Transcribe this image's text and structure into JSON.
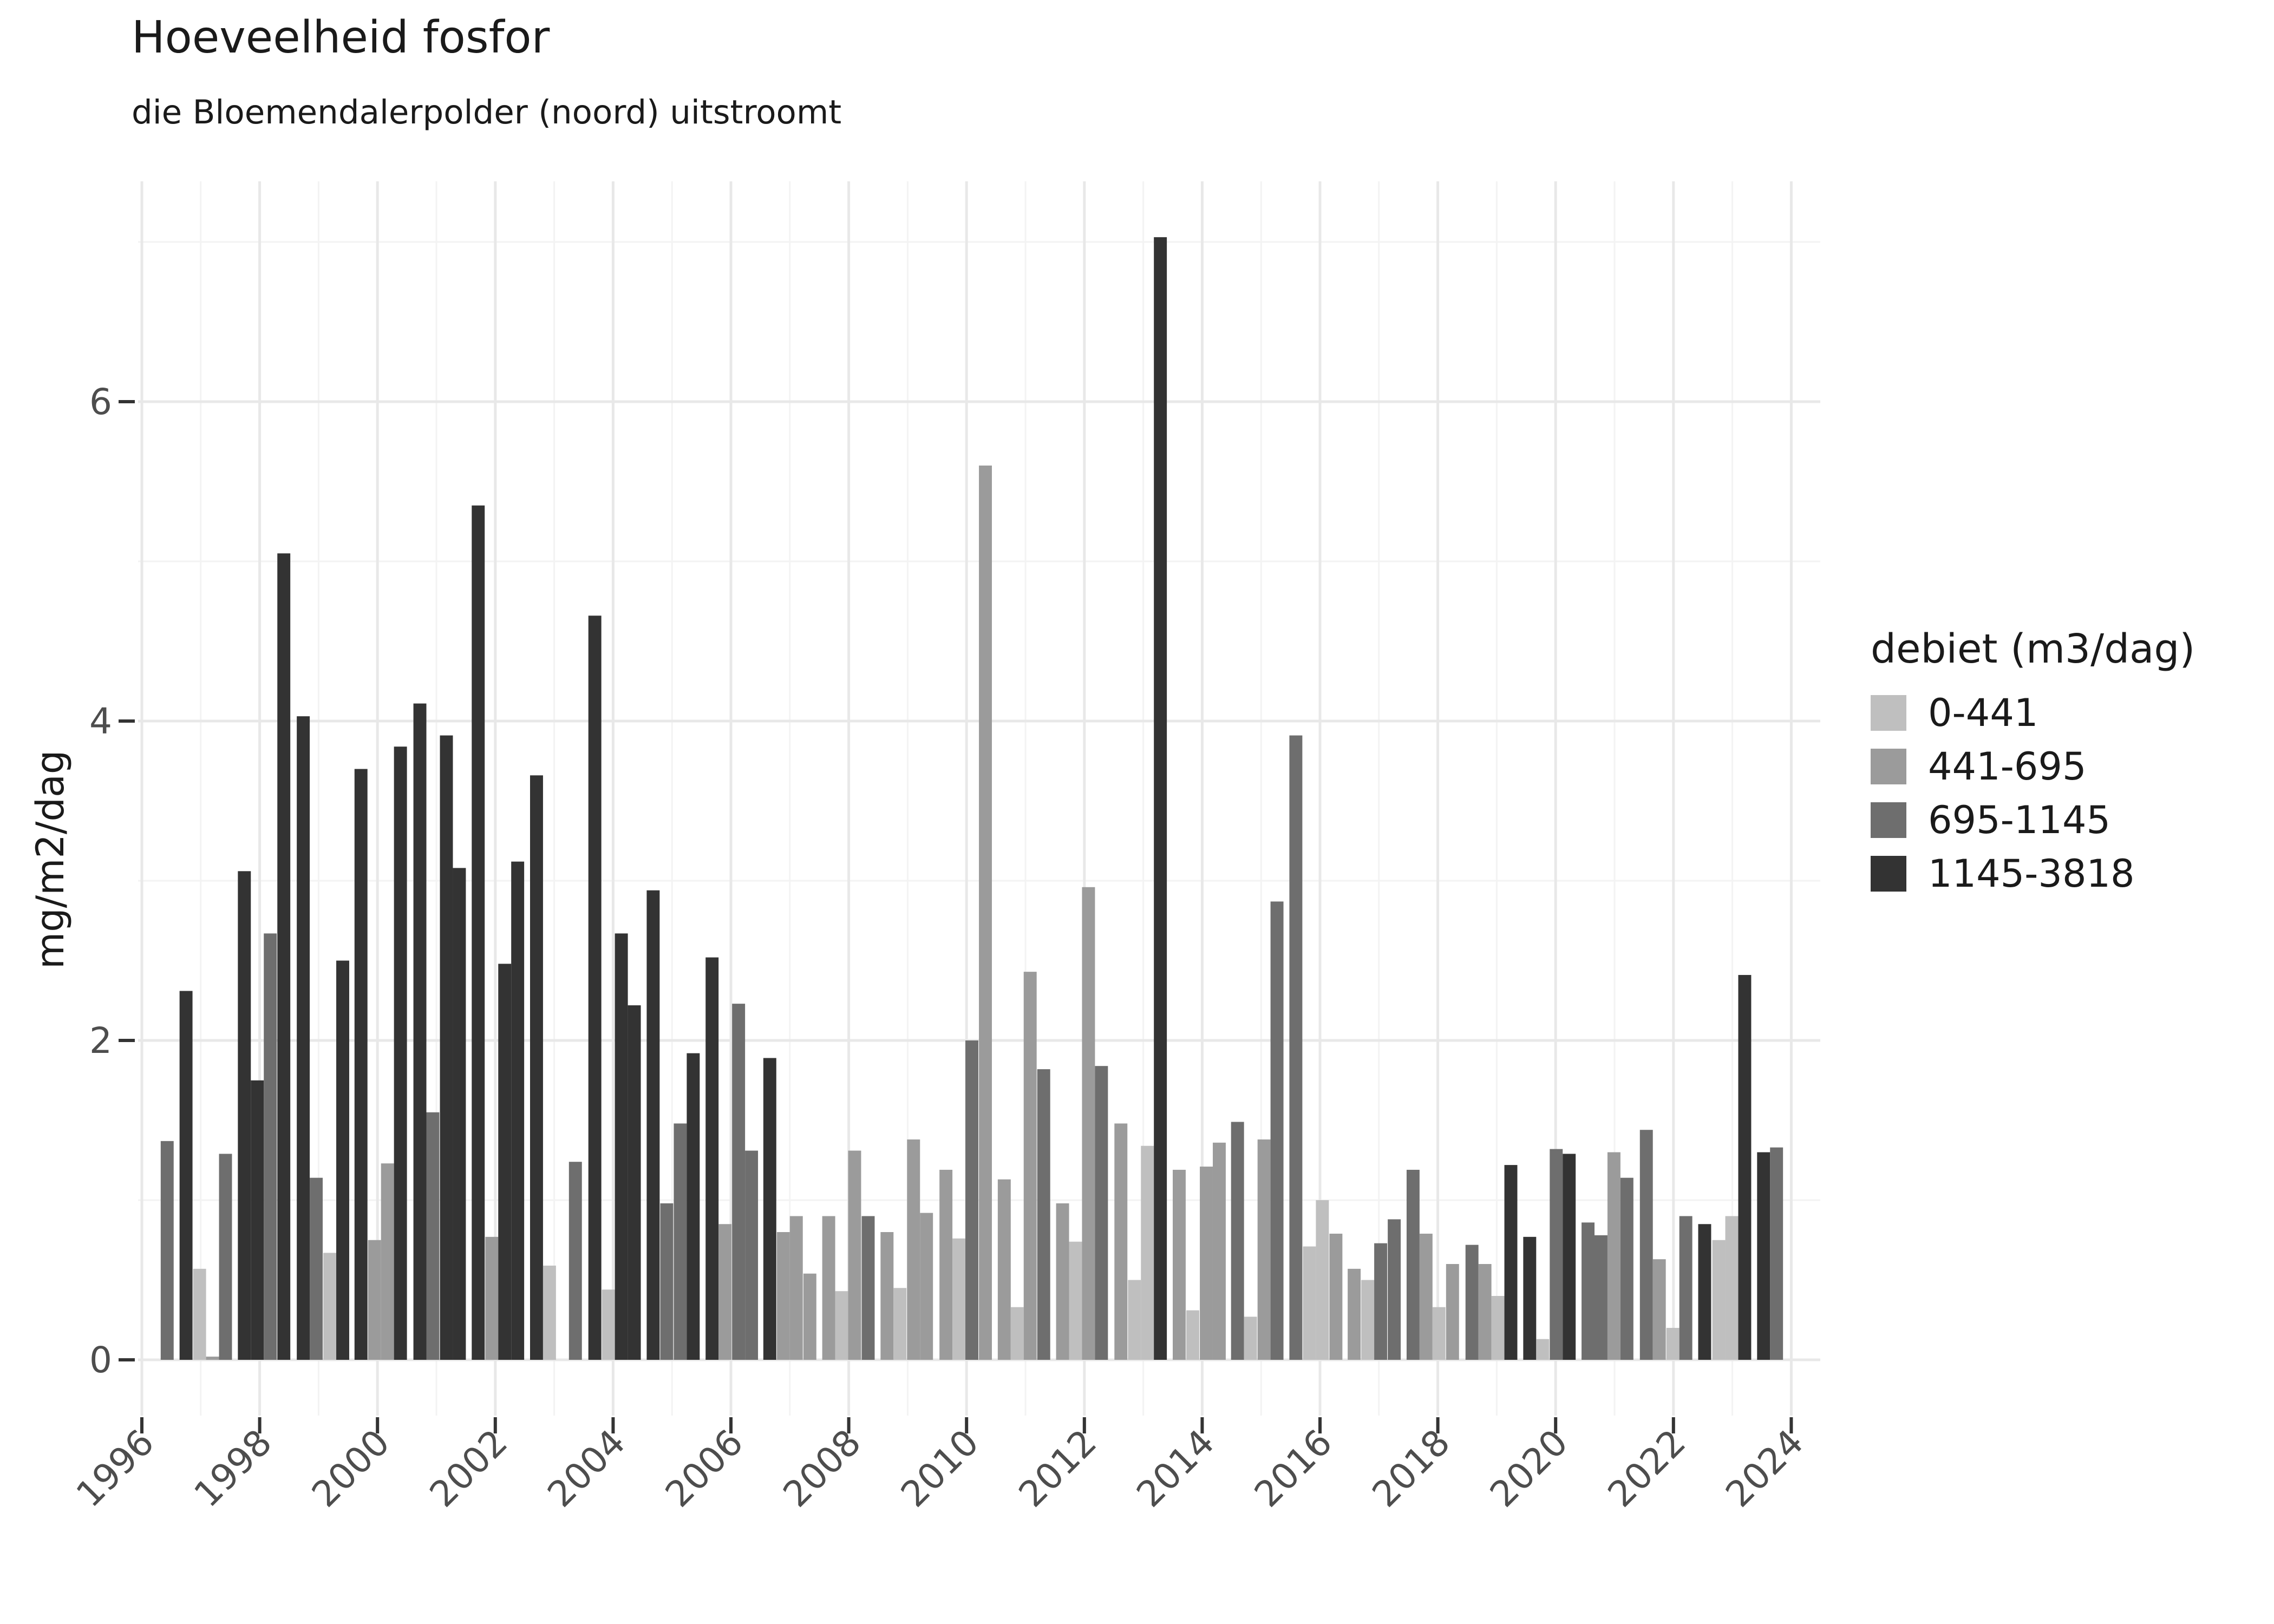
{
  "chart_data": {
    "type": "bar",
    "title": "Hoeveelheid fosfor",
    "subtitle": "die Bloemendalerpolder (noord) uitstroomt",
    "ylabel": "mg/m2/dag",
    "xlabel": "",
    "legend_title": "debiet (m3/dag)",
    "legend_position": "right",
    "grid": "major and minor, light gray on white panel",
    "categories": [
      {
        "label": "0-441",
        "color": "#bfbfbf"
      },
      {
        "label": "441-695",
        "color": "#9b9b9b"
      },
      {
        "label": "695-1145",
        "color": "#6e6e6e"
      },
      {
        "label": "1145-3818",
        "color": "#333333"
      }
    ],
    "x_ticks": [
      1996,
      1998,
      2000,
      2002,
      2004,
      2006,
      2008,
      2010,
      2012,
      2014,
      2016,
      2018,
      2020,
      2022,
      2024
    ],
    "x_minor_ticks": [
      1997,
      1999,
      2001,
      2003,
      2005,
      2007,
      2009,
      2011,
      2013,
      2015,
      2017,
      2019,
      2021,
      2023
    ],
    "y_ticks": [
      0,
      2,
      4,
      6
    ],
    "y_minor_ticks": [
      1,
      3,
      5,
      7
    ],
    "xlim": [
      1995.94,
      2024.5
    ],
    "ylim": [
      -0.35,
      7.38
    ],
    "bar_width_years": 0.22,
    "text_color": "#4d4d4d",
    "tick_color": "#333333",
    "grid_major_color": "#e8e8e8",
    "grid_minor_color": "#f3f3f3",
    "bars_format": "[year_decimal, value_mg_per_m2_per_dag, category_index]",
    "bars": [
      [
        1996.43,
        1.37,
        2
      ],
      [
        1996.75,
        2.31,
        3
      ],
      [
        1996.98,
        0.57,
        0
      ],
      [
        1997.2,
        0.02,
        1
      ],
      [
        1997.42,
        1.29,
        2
      ],
      [
        1997.74,
        3.06,
        3
      ],
      [
        1997.96,
        1.75,
        3
      ],
      [
        1998.18,
        2.67,
        2
      ],
      [
        1998.41,
        5.05,
        3
      ],
      [
        1998.74,
        4.03,
        3
      ],
      [
        1998.96,
        1.14,
        2
      ],
      [
        1999.19,
        0.67,
        0
      ],
      [
        1999.41,
        2.5,
        3
      ],
      [
        1999.72,
        3.7,
        3
      ],
      [
        1999.95,
        0.75,
        1
      ],
      [
        2000.17,
        1.23,
        1
      ],
      [
        2000.39,
        3.84,
        3
      ],
      [
        2000.72,
        4.11,
        3
      ],
      [
        2000.94,
        1.55,
        2
      ],
      [
        2001.17,
        3.91,
        3
      ],
      [
        2001.39,
        3.08,
        3
      ],
      [
        2001.71,
        5.35,
        3
      ],
      [
        2001.94,
        0.77,
        1
      ],
      [
        2002.16,
        2.48,
        3
      ],
      [
        2002.38,
        3.12,
        3
      ],
      [
        2002.7,
        3.66,
        3
      ],
      [
        2002.92,
        0.59,
        0
      ],
      [
        2003.36,
        1.24,
        2
      ],
      [
        2003.69,
        4.66,
        3
      ],
      [
        2003.92,
        0.44,
        0
      ],
      [
        2004.14,
        2.67,
        3
      ],
      [
        2004.36,
        2.22,
        3
      ],
      [
        2004.68,
        2.94,
        3
      ],
      [
        2004.91,
        0.98,
        2
      ],
      [
        2005.14,
        1.48,
        2
      ],
      [
        2005.36,
        1.92,
        3
      ],
      [
        2005.68,
        2.52,
        3
      ],
      [
        2005.9,
        0.85,
        1
      ],
      [
        2006.13,
        2.23,
        2
      ],
      [
        2006.35,
        1.31,
        2
      ],
      [
        2006.66,
        1.89,
        3
      ],
      [
        2006.89,
        0.8,
        1
      ],
      [
        2007.11,
        0.9,
        1
      ],
      [
        2007.34,
        0.54,
        1
      ],
      [
        2007.66,
        0.9,
        1
      ],
      [
        2007.88,
        0.43,
        0
      ],
      [
        2008.1,
        1.31,
        1
      ],
      [
        2008.33,
        0.9,
        2
      ],
      [
        2008.65,
        0.8,
        1
      ],
      [
        2008.87,
        0.45,
        0
      ],
      [
        2009.1,
        1.38,
        1
      ],
      [
        2009.32,
        0.92,
        1
      ],
      [
        2009.65,
        1.19,
        1
      ],
      [
        2009.87,
        0.76,
        0
      ],
      [
        2010.09,
        2.0,
        2
      ],
      [
        2010.32,
        5.6,
        1
      ],
      [
        2010.64,
        1.13,
        1
      ],
      [
        2010.86,
        0.33,
        0
      ],
      [
        2011.08,
        2.43,
        1
      ],
      [
        2011.31,
        1.82,
        2
      ],
      [
        2011.63,
        0.98,
        1
      ],
      [
        2011.85,
        0.74,
        0
      ],
      [
        2012.07,
        2.96,
        1
      ],
      [
        2012.29,
        1.84,
        2
      ],
      [
        2012.62,
        1.48,
        1
      ],
      [
        2012.85,
        0.5,
        0
      ],
      [
        2013.07,
        1.34,
        0
      ],
      [
        2013.29,
        7.03,
        3
      ],
      [
        2013.61,
        1.19,
        1
      ],
      [
        2013.84,
        0.31,
        0
      ],
      [
        2014.07,
        1.21,
        1
      ],
      [
        2014.29,
        1.36,
        1
      ],
      [
        2014.6,
        1.49,
        2
      ],
      [
        2014.82,
        0.27,
        0
      ],
      [
        2015.05,
        1.38,
        1
      ],
      [
        2015.27,
        2.87,
        2
      ],
      [
        2015.59,
        3.91,
        2
      ],
      [
        2015.82,
        0.71,
        0
      ],
      [
        2016.04,
        1.0,
        0
      ],
      [
        2016.27,
        0.79,
        1
      ],
      [
        2016.58,
        0.57,
        1
      ],
      [
        2016.81,
        0.5,
        0
      ],
      [
        2017.03,
        0.73,
        2
      ],
      [
        2017.26,
        0.88,
        2
      ],
      [
        2017.58,
        1.19,
        2
      ],
      [
        2017.8,
        0.79,
        1
      ],
      [
        2018.02,
        0.33,
        0
      ],
      [
        2018.25,
        0.6,
        1
      ],
      [
        2018.58,
        0.72,
        2
      ],
      [
        2018.8,
        0.6,
        1
      ],
      [
        2019.02,
        0.4,
        0
      ],
      [
        2019.24,
        1.22,
        3
      ],
      [
        2019.56,
        0.77,
        3
      ],
      [
        2019.78,
        0.13,
        0
      ],
      [
        2020.01,
        1.32,
        2
      ],
      [
        2020.23,
        1.29,
        3
      ],
      [
        2020.55,
        0.86,
        2
      ],
      [
        2020.77,
        0.78,
        2
      ],
      [
        2020.99,
        1.3,
        1
      ],
      [
        2021.21,
        1.14,
        2
      ],
      [
        2021.54,
        1.44,
        2
      ],
      [
        2021.76,
        0.63,
        1
      ],
      [
        2021.99,
        0.2,
        0
      ],
      [
        2022.21,
        0.9,
        2
      ],
      [
        2022.53,
        0.85,
        3
      ],
      [
        2022.77,
        0.75,
        0
      ],
      [
        2022.99,
        0.9,
        0
      ],
      [
        2023.21,
        2.41,
        3
      ],
      [
        2023.53,
        1.3,
        3
      ],
      [
        2023.75,
        1.33,
        2
      ]
    ]
  }
}
